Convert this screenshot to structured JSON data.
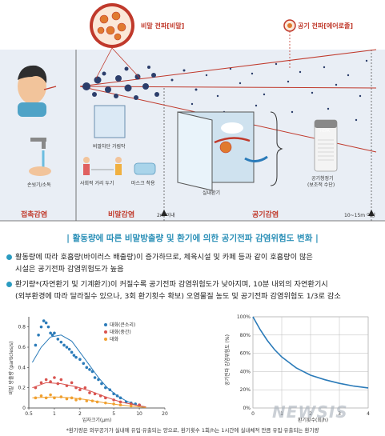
{
  "infographic": {
    "top_labels": {
      "droplet": "비말 전파[비말]",
      "airborne": "공기 전파[에어로졸]"
    },
    "items": {
      "handwash": "손씻기/소독",
      "droplet_block": "비말차단 가림막",
      "distancing": "사회적 거리 두기",
      "mask": "마스크 착용",
      "ventilation": "실내환기",
      "purifier_line1": "공기청정기",
      "purifier_line2": "(보조적 수단)",
      "hepa": "HEPA"
    },
    "zones": {
      "contact": "접촉감염",
      "droplet": "비말감염",
      "airborne": "공기감염"
    },
    "distances": {
      "two_m": "2m 이내",
      "far": "10~15m 이상"
    }
  },
  "heading": "|   활동량에 따른 비말방출량 및 환기에 의한 공기전파 감염위험도 변화   |",
  "bullets": [
    {
      "line1": "활동량에 따라 호흡량(바이러스 배출량)이 증가하므로, 체육시설 및 카페 등과 같이 호흡량이 많은",
      "line2": "시설은 공기전파 감염위험도가 높음"
    },
    {
      "line1": "환기량*(자연환기 및 기계환기)이 커질수록 공기전파 감염위험도가 낮아지며, 10분 내외의 자연환기시",
      "line2": "(외부환경에 따라 달라질수 있으나, 3회 환기횟수 확보) 오염물질 농도 및 공기전파 감염위험도 1/3로 감소"
    }
  ],
  "footnote": "*환기량은 외부공기가 실내에 유입·유출되는 양으로, 환기횟수 1회/h는 1시간에 실내체적 만큼 유입·유출되는 환기량",
  "watermark": "NEWSIS",
  "colors": {
    "accent": "#2a8fb7",
    "red": "#c0392b",
    "series_blue": "#2b7bb9",
    "series_red": "#d9534f",
    "series_orange": "#f0a030"
  },
  "chart_data": [
    {
      "type": "scatter",
      "ylabel": "비말 방출량 (particles/s)",
      "xlabel": "입자크기(μm)",
      "x_scale": "log",
      "xticks": [
        "0.5",
        "1",
        "2",
        "5",
        "10",
        "20"
      ],
      "yticks": [
        "0",
        "0.2",
        "0.4",
        "0.6",
        "0.8"
      ],
      "ylim": [
        0,
        0.9
      ],
      "xlim": [
        0.5,
        20
      ],
      "legend_position": "top-right",
      "series": [
        {
          "name": "대화(큰소리)",
          "color": "#2b7bb9",
          "x": [
            0.6,
            0.65,
            0.7,
            0.75,
            0.8,
            0.85,
            0.9,
            0.95,
            1.0,
            1.1,
            1.2,
            1.3,
            1.4,
            1.5,
            1.6,
            1.7,
            1.8,
            2.0,
            2.2,
            2.4,
            2.6,
            2.8,
            3.0,
            3.3,
            3.6,
            4.0,
            4.5,
            5.0,
            5.5,
            6.0,
            7.0,
            8.0,
            9.0,
            10.0
          ],
          "y": [
            0.62,
            0.72,
            0.8,
            0.86,
            0.84,
            0.8,
            0.74,
            0.72,
            0.74,
            0.68,
            0.65,
            0.62,
            0.6,
            0.58,
            0.55,
            0.52,
            0.5,
            0.48,
            0.44,
            0.4,
            0.38,
            0.36,
            0.3,
            0.28,
            0.24,
            0.2,
            0.18,
            0.14,
            0.12,
            0.1,
            0.06,
            0.05,
            0.04,
            0.03
          ],
          "fit_x": [
            0.55,
            0.7,
            0.9,
            1.2,
            1.6,
            2.0,
            2.6,
            3.3,
            4.2,
            5.5,
            7.0,
            9.0,
            12.0
          ],
          "fit_y": [
            0.45,
            0.6,
            0.7,
            0.72,
            0.66,
            0.55,
            0.42,
            0.3,
            0.2,
            0.12,
            0.07,
            0.03,
            0.01
          ]
        },
        {
          "name": "대화(중간)",
          "color": "#d9534f",
          "x": [
            0.6,
            0.7,
            0.8,
            0.9,
            1.0,
            1.1,
            1.2,
            1.4,
            1.6,
            1.8,
            2.0,
            2.3,
            2.6,
            3.0,
            3.5,
            4.0,
            5.0,
            6.0,
            8.0,
            10.0
          ],
          "y": [
            0.2,
            0.25,
            0.28,
            0.26,
            0.3,
            0.24,
            0.28,
            0.22,
            0.25,
            0.2,
            0.18,
            0.2,
            0.15,
            0.14,
            0.12,
            0.1,
            0.08,
            0.06,
            0.04,
            0.03
          ],
          "fit_x": [
            0.55,
            0.8,
            1.2,
            1.8,
            2.6,
            4.0,
            6.0,
            9.0,
            12.0
          ],
          "fit_y": [
            0.2,
            0.25,
            0.24,
            0.21,
            0.17,
            0.11,
            0.06,
            0.03,
            0.01
          ]
        },
        {
          "name": "대화",
          "color": "#f0a030",
          "x": [
            0.6,
            0.7,
            0.8,
            0.9,
            1.0,
            1.2,
            1.4,
            1.6,
            1.8,
            2.0,
            2.4,
            2.8,
            3.2,
            4.0,
            5.0,
            6.0,
            8.0
          ],
          "y": [
            0.1,
            0.12,
            0.1,
            0.13,
            0.1,
            0.11,
            0.09,
            0.1,
            0.08,
            0.09,
            0.07,
            0.07,
            0.06,
            0.05,
            0.04,
            0.03,
            0.02
          ],
          "fit_x": [
            0.55,
            1.0,
            1.6,
            2.5,
            4.0,
            6.0,
            9.0,
            12.0
          ],
          "fit_y": [
            0.1,
            0.11,
            0.1,
            0.08,
            0.05,
            0.03,
            0.015,
            0.005
          ]
        }
      ]
    },
    {
      "type": "line",
      "ylabel": "공기전파 감염위험도 (%)",
      "xlabel": "환기횟수(회/h)",
      "xticks": [
        "0",
        "1",
        "2",
        "3",
        "4"
      ],
      "yticks": [
        "0%",
        "20%",
        "40%",
        "60%",
        "80%",
        "100%"
      ],
      "xlim": [
        0,
        4
      ],
      "ylim": [
        0,
        100
      ],
      "grid": true,
      "series": [
        {
          "color": "#2b7bb9",
          "x": [
            0,
            0.25,
            0.5,
            0.75,
            1.0,
            1.25,
            1.5,
            1.75,
            2.0,
            2.5,
            3.0,
            3.5,
            4.0
          ],
          "y": [
            100,
            86,
            74,
            64,
            56,
            50,
            44,
            40,
            36,
            31,
            27,
            24,
            22
          ]
        }
      ]
    }
  ]
}
